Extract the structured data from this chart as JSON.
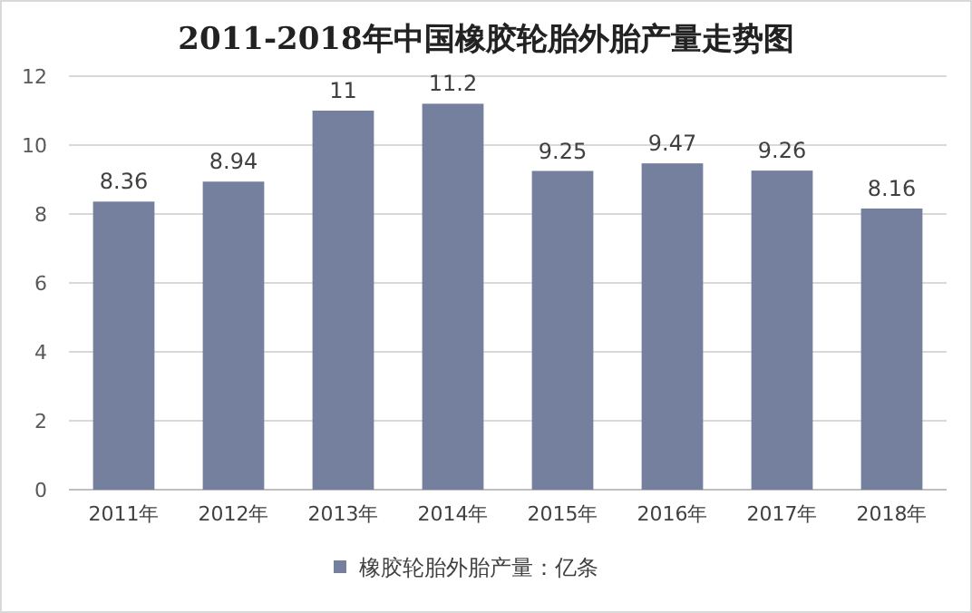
{
  "chart_data": {
    "type": "bar",
    "title": "2011-2018年中国橡胶轮胎外胎产量走势图",
    "categories": [
      "2011年",
      "2012年",
      "2013年",
      "2014年",
      "2015年",
      "2016年",
      "2017年",
      "2018年"
    ],
    "series": [
      {
        "name": "橡胶轮胎外胎产量：亿条",
        "color": "#75809e",
        "values": [
          8.36,
          8.94,
          11,
          11.2,
          9.25,
          9.47,
          9.26,
          8.16
        ]
      }
    ],
    "ylim": [
      0,
      12
    ],
    "yticks": [
      0,
      2,
      4,
      6,
      8,
      10,
      12
    ],
    "grid": "y",
    "legend": "bottom",
    "data_labels": true
  }
}
